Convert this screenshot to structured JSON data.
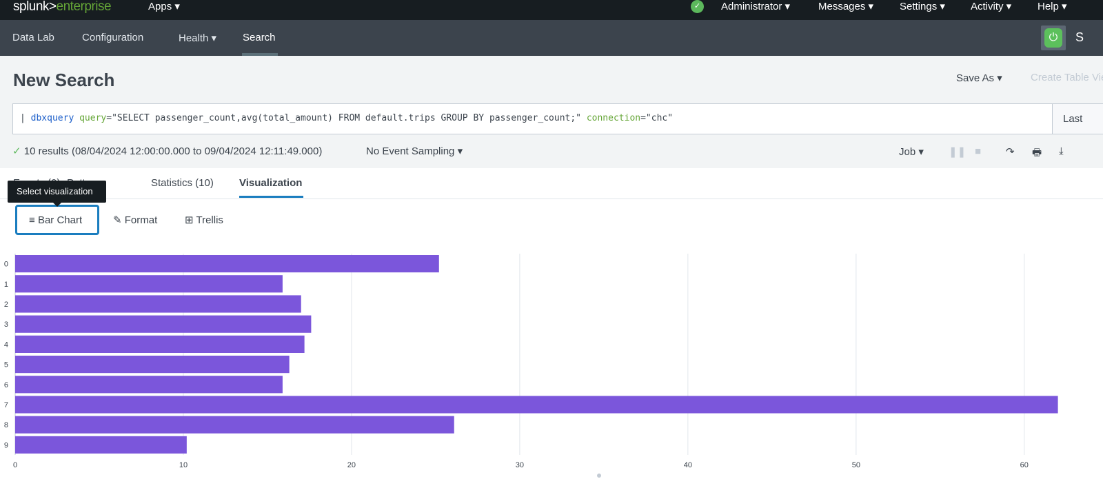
{
  "topbar": {
    "logo_a": "splunk>",
    "logo_b": "enterprise",
    "apps": "Apps ▾",
    "menus": [
      "Administrator ▾",
      "Messages ▾",
      "Settings ▾",
      "Activity ▾",
      "Help ▾"
    ],
    "status_icon": "check-circle-icon"
  },
  "appbar": {
    "items": [
      "Data Lab",
      "Configuration",
      "Health ▾",
      "Search"
    ],
    "active": "Search",
    "app_title": "S"
  },
  "page": {
    "title": "New Search",
    "save_as": "Save As ▾",
    "create_table": "Create Table View"
  },
  "search": {
    "pipe": "| ",
    "command": "dbxquery",
    "arg1": "query",
    "val1": "=\"SELECT passenger_count,avg(total_amount) FROM default.trips GROUP BY passenger_count;\" ",
    "arg2": "connection",
    "val2": "=\"chc\"",
    "time_picker": "Last"
  },
  "status": {
    "check": "✓",
    "text": "10 results (08/04/2024 12:00:00.000 to 09/04/2024 12:11:49.000)",
    "sampling": "No Event Sampling ▾",
    "job": "Job ▾"
  },
  "tabs": [
    "Events (0)",
    "Patterns",
    "Statistics (10)",
    "Visualization"
  ],
  "tooltip": "Select visualization",
  "viz": {
    "type_button": "Bar Chart",
    "format": "Format",
    "trellis": "Trellis"
  },
  "chart_data": {
    "type": "bar",
    "orientation": "horizontal",
    "categories": [
      "0",
      "1",
      "2",
      "3",
      "4",
      "5",
      "6",
      "7",
      "8",
      "9"
    ],
    "values": [
      25.2,
      15.9,
      17.0,
      17.6,
      17.2,
      16.3,
      15.9,
      62.0,
      26.1,
      10.2
    ],
    "xlim": [
      0,
      63
    ],
    "xticks": [
      0,
      10,
      20,
      30,
      40,
      50,
      60
    ],
    "grid": true,
    "color": "#7b56db"
  }
}
